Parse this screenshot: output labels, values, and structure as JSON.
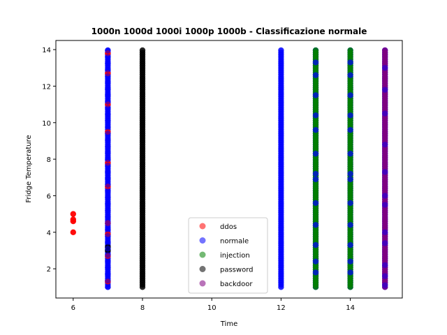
{
  "chart_data": {
    "type": "scatter",
    "title": "1000n 1000d 1000i 1000p 1000b - Classificazione normale",
    "xlabel": "Time",
    "ylabel": "Fridge Temperature",
    "xlim": [
      5.5,
      15.5
    ],
    "ylim": [
      0.4,
      14.5
    ],
    "xticks": [
      6,
      8,
      10,
      12,
      14
    ],
    "yticks": [
      2,
      4,
      6,
      8,
      10,
      12,
      14
    ],
    "grid": false,
    "legend_position": "lower-center",
    "series": [
      {
        "name": "ddos",
        "color": "#ff0000",
        "points": [
          [
            6,
            4.0
          ],
          [
            6,
            4.6
          ],
          [
            6,
            4.7
          ],
          [
            6,
            5.0
          ],
          [
            7,
            1.3
          ],
          [
            7,
            2.7
          ],
          [
            7,
            3.9
          ],
          [
            7,
            4.5
          ],
          [
            7,
            6.5
          ],
          [
            7,
            7.8
          ],
          [
            7,
            9.5
          ],
          [
            7,
            11.0
          ],
          [
            7,
            12.7
          ],
          [
            7,
            13.8
          ]
        ]
      },
      {
        "name": "normale",
        "color": "#0000ff",
        "columns": [
          7,
          12,
          13,
          14,
          15
        ],
        "range": [
          1.0,
          14.0
        ]
      },
      {
        "name": "injection",
        "color": "#008000",
        "columns": [
          13,
          14
        ],
        "range": [
          1.0,
          14.0
        ]
      },
      {
        "name": "password",
        "color": "#000000",
        "columns": [
          8
        ],
        "range": [
          1.0,
          14.0
        ],
        "extra_points": [
          [
            7,
            3.0
          ],
          [
            7,
            3.2
          ]
        ]
      },
      {
        "name": "backdoor",
        "color": "#800080",
        "columns": [
          15
        ],
        "range": [
          1.0,
          14.0
        ]
      }
    ]
  }
}
